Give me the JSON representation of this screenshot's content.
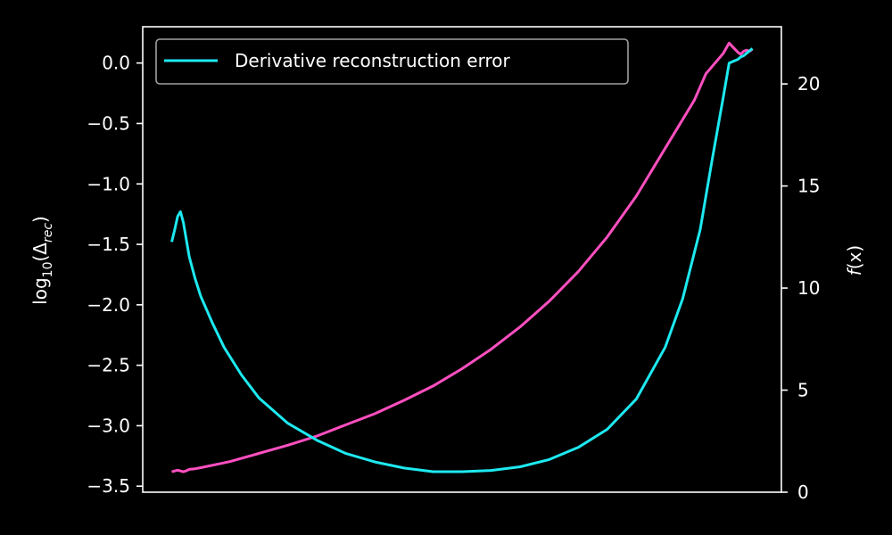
{
  "chart_data": {
    "type": "line",
    "grid": false,
    "legend": {
      "placement": "top-left",
      "entries": [
        "Derivative reconstruction error"
      ]
    },
    "y_left": {
      "label_base": "log",
      "label_sub": "10",
      "label_open": "(Δ",
      "label_delta_sub": "rec",
      "label_close": ")",
      "range": [
        -3.55,
        0.3
      ],
      "ticks": [
        0.0,
        -0.5,
        -1.0,
        -1.5,
        -2.0,
        -2.5,
        -3.0,
        -3.5
      ],
      "tick_labels": [
        "0.0",
        "−0.5",
        "−1.0",
        "−1.5",
        "−2.0",
        "−2.5",
        "−3.0",
        "−3.5"
      ]
    },
    "y_right": {
      "label_f": "f",
      "label_arg": "(x)",
      "range": [
        0,
        22.8
      ],
      "ticks": [
        0,
        5,
        10,
        15,
        20
      ],
      "tick_labels": [
        "0",
        "5",
        "10",
        "15",
        "20"
      ]
    },
    "x_range": [
      -0.05,
      1.05
    ],
    "series": [
      {
        "name": "Derivative reconstruction error",
        "axis": "left",
        "color": "#1de9f0",
        "x": [
          0.0,
          0.005,
          0.01,
          0.015,
          0.02,
          0.03,
          0.04,
          0.05,
          0.07,
          0.09,
          0.12,
          0.15,
          0.2,
          0.25,
          0.3,
          0.35,
          0.4,
          0.45,
          0.5,
          0.55,
          0.6,
          0.65,
          0.7,
          0.75,
          0.8,
          0.85,
          0.88,
          0.91,
          0.93,
          0.95,
          0.96,
          0.97,
          0.975,
          0.98,
          0.985,
          0.99,
          0.995,
          1.0
        ],
        "y": [
          -1.48,
          -1.38,
          -1.27,
          -1.23,
          -1.32,
          -1.6,
          -1.78,
          -1.93,
          -2.15,
          -2.35,
          -2.58,
          -2.77,
          -2.98,
          -3.12,
          -3.23,
          -3.3,
          -3.35,
          -3.38,
          -3.38,
          -3.37,
          -3.34,
          -3.28,
          -3.18,
          -3.03,
          -2.78,
          -2.35,
          -1.95,
          -1.38,
          -0.82,
          -0.28,
          0.0,
          0.02,
          0.03,
          0.05,
          0.06,
          0.08,
          0.1,
          0.12
        ]
      },
      {
        "name": "",
        "axis": "right",
        "color": "#ff4fc0",
        "x": [
          0.0,
          0.01,
          0.02,
          0.025,
          0.03,
          0.04,
          0.05,
          0.1,
          0.15,
          0.2,
          0.25,
          0.3,
          0.35,
          0.4,
          0.45,
          0.5,
          0.55,
          0.6,
          0.65,
          0.7,
          0.75,
          0.8,
          0.85,
          0.9,
          0.92,
          0.95,
          0.96,
          0.97,
          0.975,
          0.98,
          0.985,
          0.99,
          0.995,
          1.0
        ],
        "y": [
          1.0,
          1.08,
          1.0,
          1.05,
          1.12,
          1.15,
          1.2,
          1.5,
          1.9,
          2.3,
          2.75,
          3.3,
          3.85,
          4.5,
          5.2,
          6.05,
          7.0,
          8.1,
          9.35,
          10.8,
          12.5,
          14.5,
          16.85,
          19.2,
          20.5,
          21.5,
          22.0,
          21.7,
          21.55,
          21.45,
          21.6,
          21.65,
          21.6,
          21.7
        ]
      }
    ]
  }
}
